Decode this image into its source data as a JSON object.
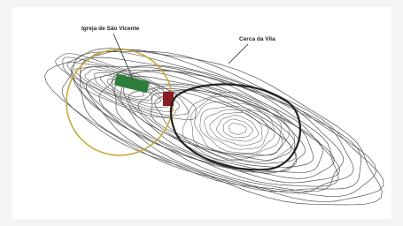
{
  "map": {
    "labels": [
      {
        "text": "Igreja de São Vicente"
      },
      {
        "text": "Cerca da Vila"
      }
    ]
  }
}
